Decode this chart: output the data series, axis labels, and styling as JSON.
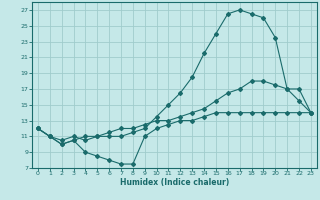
{
  "xlabel": "Humidex (Indice chaleur)",
  "bg_color": "#c5e8e8",
  "grid_color": "#a0cccc",
  "line_color": "#1a6b6b",
  "xlim": [
    -0.5,
    23.5
  ],
  "ylim": [
    7,
    28
  ],
  "xticks": [
    0,
    1,
    2,
    3,
    4,
    5,
    6,
    7,
    8,
    9,
    10,
    11,
    12,
    13,
    14,
    15,
    16,
    17,
    18,
    19,
    20,
    21,
    22,
    23
  ],
  "yticks": [
    7,
    9,
    11,
    13,
    15,
    17,
    19,
    21,
    23,
    25,
    27
  ],
  "line1_x": [
    0,
    1,
    2,
    3,
    4,
    5,
    6,
    7,
    8,
    9,
    10,
    11,
    12,
    13,
    14,
    15,
    16,
    17,
    18,
    19,
    20,
    21,
    22,
    23
  ],
  "line1_y": [
    12,
    11,
    10,
    10.5,
    9,
    8.5,
    8,
    7.5,
    7.5,
    11,
    12,
    12.5,
    13,
    13,
    13.5,
    14,
    14,
    14,
    14,
    14,
    14,
    14,
    14,
    14
  ],
  "line2_x": [
    0,
    1,
    2,
    3,
    4,
    5,
    6,
    7,
    8,
    9,
    10,
    11,
    12,
    13,
    14,
    15,
    16,
    17,
    18,
    19,
    20,
    21,
    22,
    23
  ],
  "line2_y": [
    12,
    11,
    10.5,
    11,
    10.5,
    11,
    11,
    11,
    11.5,
    12,
    13.5,
    15,
    16.5,
    18.5,
    21.5,
    24,
    26.5,
    27,
    26.5,
    26,
    23.5,
    17,
    17,
    14
  ],
  "line3_x": [
    0,
    1,
    2,
    3,
    4,
    5,
    6,
    7,
    8,
    9,
    10,
    11,
    12,
    13,
    14,
    15,
    16,
    17,
    18,
    19,
    20,
    21,
    22,
    23
  ],
  "line3_y": [
    12,
    11,
    10,
    10.5,
    11,
    11,
    11.5,
    12,
    12,
    12.5,
    13,
    13,
    13.5,
    14,
    14.5,
    15.5,
    16.5,
    17,
    18,
    18,
    17.5,
    17,
    15.5,
    14
  ]
}
